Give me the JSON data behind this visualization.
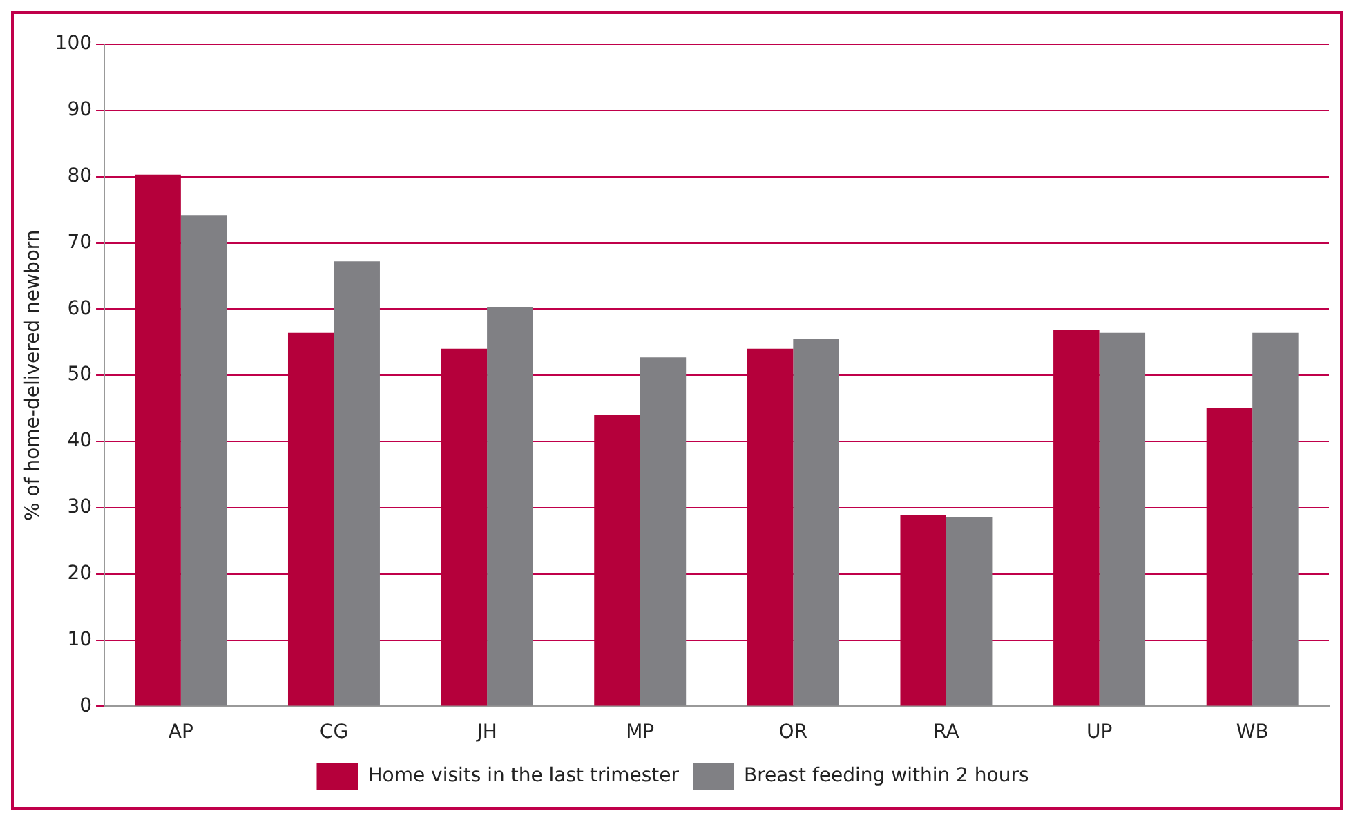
{
  "chart_data": {
    "type": "bar",
    "ylabel": "% of home-delivered newborn",
    "categories": [
      "AP",
      "CG",
      "JH",
      "MP",
      "OR",
      "RA",
      "UP",
      "WB"
    ],
    "series": [
      {
        "name": "Home visits in the last trimester",
        "color": "#b5003b",
        "values": [
          80.3,
          56.4,
          54,
          44,
          54,
          28.9,
          56.8,
          45.1
        ]
      },
      {
        "name": "Breast feeding within 2 hours",
        "color": "#808084",
        "values": [
          74.2,
          67.2,
          60.3,
          52.7,
          55.5,
          28.6,
          56.4,
          56.4
        ]
      }
    ],
    "ylim": [
      0,
      100
    ],
    "yticks": [
      0,
      10,
      20,
      30,
      40,
      50,
      60,
      70,
      80,
      90,
      100
    ],
    "grid": "y",
    "legend": "bottom"
  }
}
